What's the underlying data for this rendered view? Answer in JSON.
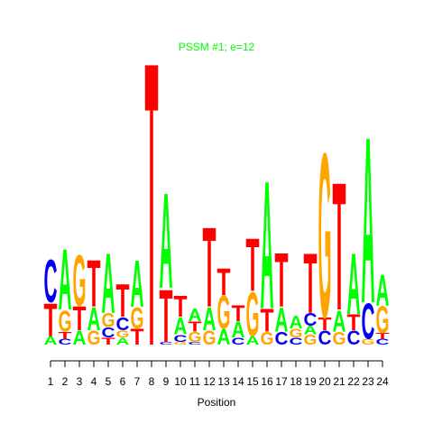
{
  "chart_data": {
    "type": "sequence-logo",
    "title": "PSSM #1; e=12",
    "x_label": "Position",
    "title_color": "#00ff00",
    "colors": {
      "A": "#00ff00",
      "C": "#0000ee",
      "G": "#ffa500",
      "T": "#ff0000"
    },
    "ylim": [
      0,
      2
    ],
    "categories": [
      "1",
      "2",
      "3",
      "4",
      "5",
      "6",
      "7",
      "8",
      "9",
      "10",
      "11",
      "12",
      "13",
      "14",
      "15",
      "16",
      "17",
      "18",
      "19",
      "20",
      "21",
      "22",
      "23",
      "24"
    ],
    "stacks": [
      {
        "letters": [
          "A",
          "T",
          "C"
        ],
        "values": [
          0.06,
          0.23,
          0.3
        ]
      },
      {
        "letters": [
          "C",
          "T",
          "G",
          "A"
        ],
        "values": [
          0.04,
          0.05,
          0.15,
          0.43
        ]
      },
      {
        "letters": [
          "A",
          "T",
          "G"
        ],
        "values": [
          0.1,
          0.17,
          0.36
        ]
      },
      {
        "letters": [
          "G",
          "A",
          "T"
        ],
        "values": [
          0.1,
          0.16,
          0.33
        ]
      },
      {
        "letters": [
          "T",
          "C",
          "G",
          "A"
        ],
        "values": [
          0.05,
          0.07,
          0.1,
          0.42
        ]
      },
      {
        "letters": [
          "A",
          "G",
          "C",
          "T"
        ],
        "values": [
          0.05,
          0.05,
          0.09,
          0.23
        ]
      },
      {
        "letters": [
          "T",
          "G",
          "A"
        ],
        "values": [
          0.11,
          0.15,
          0.33
        ]
      },
      {
        "letters": [
          "T"
        ],
        "values": [
          2.0
        ]
      },
      {
        "letters": [
          "C",
          "T",
          "A"
        ],
        "values": [
          0.02,
          0.37,
          0.67
        ]
      },
      {
        "letters": [
          "G",
          "C",
          "A",
          "T"
        ],
        "values": [
          0.02,
          0.05,
          0.12,
          0.15
        ]
      },
      {
        "letters": [
          "C",
          "G",
          "T",
          "A"
        ],
        "values": [
          0.02,
          0.07,
          0.07,
          0.09
        ]
      },
      {
        "letters": [
          "G",
          "A",
          "T"
        ],
        "values": [
          0.1,
          0.16,
          0.56
        ]
      },
      {
        "letters": [
          "A",
          "G",
          "T"
        ],
        "values": [
          0.11,
          0.23,
          0.19
        ]
      },
      {
        "letters": [
          "C",
          "A",
          "T"
        ],
        "values": [
          0.05,
          0.11,
          0.11
        ]
      },
      {
        "letters": [
          "A",
          "G",
          "T"
        ],
        "values": [
          0.06,
          0.31,
          0.37
        ]
      },
      {
        "letters": [
          "G",
          "T",
          "A"
        ],
        "values": [
          0.09,
          0.16,
          0.9
        ]
      },
      {
        "letters": [
          "C",
          "A",
          "T"
        ],
        "values": [
          0.09,
          0.17,
          0.38
        ]
      },
      {
        "letters": [
          "C",
          "G",
          "A"
        ],
        "values": [
          0.05,
          0.06,
          0.09
        ]
      },
      {
        "letters": [
          "G",
          "A",
          "C",
          "T"
        ],
        "values": [
          0.07,
          0.06,
          0.09,
          0.42
        ]
      },
      {
        "letters": [
          "C",
          "T",
          "G"
        ],
        "values": [
          0.1,
          0.09,
          1.16
        ]
      },
      {
        "letters": [
          "G",
          "A",
          "T"
        ],
        "values": [
          0.09,
          0.15,
          0.9
        ]
      },
      {
        "letters": [
          "C",
          "T",
          "A"
        ],
        "values": [
          0.1,
          0.11,
          0.43
        ]
      },
      {
        "letters": [
          "G",
          "C",
          "A"
        ],
        "values": [
          0.04,
          0.25,
          1.17
        ]
      },
      {
        "letters": [
          "C",
          "T",
          "G",
          "A"
        ],
        "values": [
          0.04,
          0.04,
          0.19,
          0.22
        ]
      }
    ]
  }
}
